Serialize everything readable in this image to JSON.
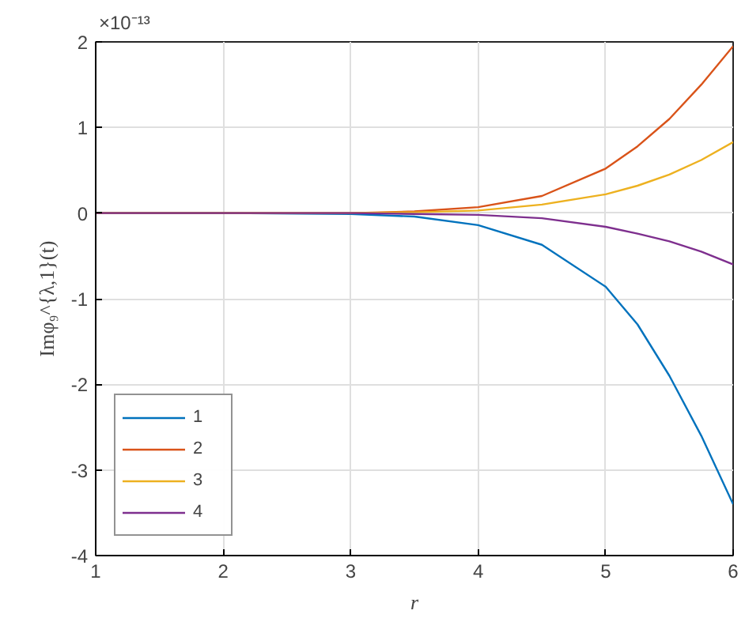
{
  "chart_data": {
    "type": "line",
    "xlabel": "r",
    "ylabel": "Imφ₉^{λ,1}(t)",
    "annotations": [
      "×10⁻¹³"
    ],
    "x": [
      1,
      2,
      3,
      3.5,
      4,
      4.5,
      5,
      5.25,
      5.5,
      5.75,
      6
    ],
    "series": [
      {
        "name": "1",
        "color": "#0072bd",
        "values": [
          0,
          0,
          -0.01,
          -0.04,
          -0.14,
          -0.37,
          -0.86,
          -1.3,
          -1.9,
          -2.6,
          -3.4
        ]
      },
      {
        "name": "2",
        "color": "#d95319",
        "values": [
          0,
          0,
          0,
          0.02,
          0.07,
          0.2,
          0.52,
          0.78,
          1.1,
          1.5,
          1.95
        ]
      },
      {
        "name": "3",
        "color": "#edb120",
        "values": [
          0,
          0,
          0,
          0.01,
          0.03,
          0.1,
          0.22,
          0.32,
          0.45,
          0.62,
          0.83
        ]
      },
      {
        "name": "4",
        "color": "#7e2f8e",
        "values": [
          0,
          0,
          0,
          -0.01,
          -0.02,
          -0.06,
          -0.16,
          -0.24,
          -0.33,
          -0.45,
          -0.6
        ]
      }
    ],
    "xlim": [
      1,
      6
    ],
    "xticks": [
      1,
      2,
      3,
      4,
      5,
      6
    ],
    "ylim": [
      -4,
      2
    ],
    "yticks": [
      -4,
      -3,
      -2,
      -1,
      0,
      1,
      2
    ],
    "grid": true,
    "legend": "bottom left",
    "line_style": "solid"
  }
}
